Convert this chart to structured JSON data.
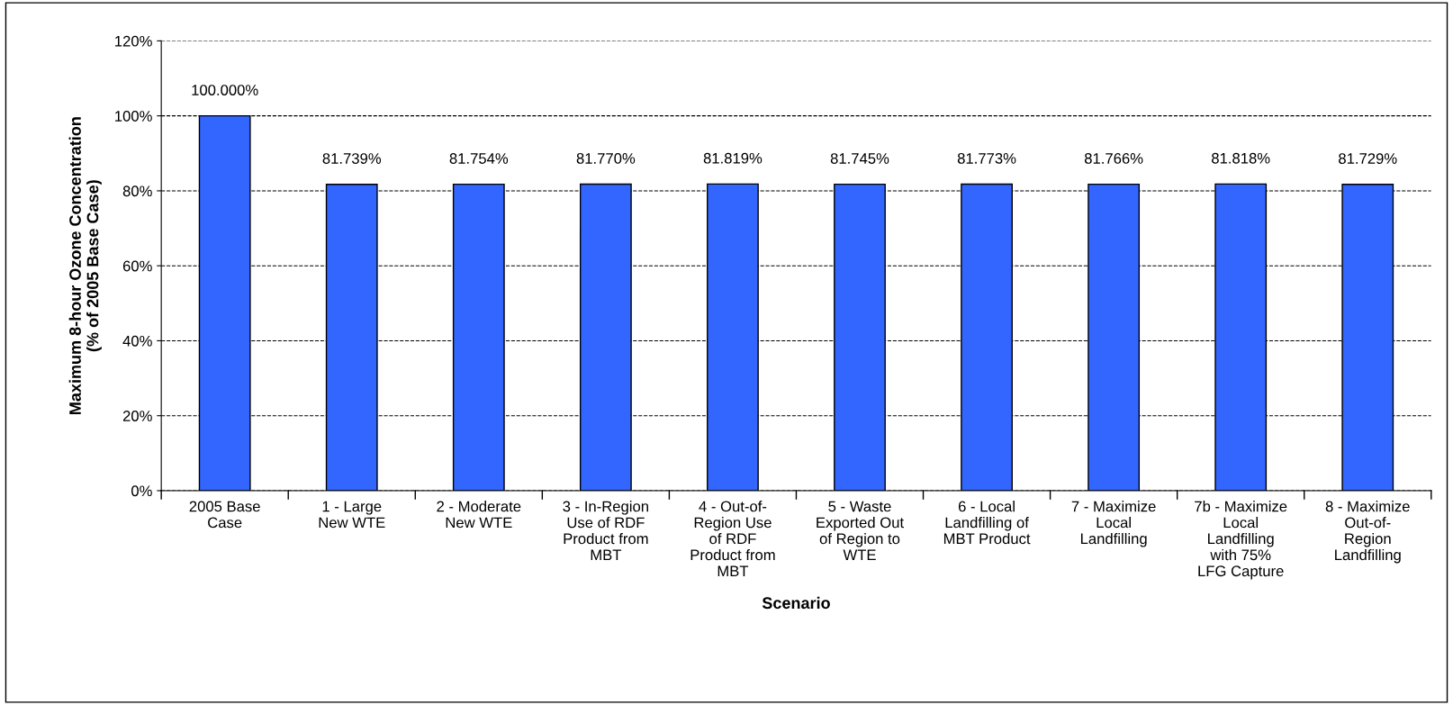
{
  "chart_data": {
    "type": "bar",
    "xlabel": "Scenario",
    "ylabel": "Maximum 8-hour Ozone Concentration\n(% of 2005 Base Case)",
    "categories": [
      "2005 Base\nCase",
      "1 - Large\nNew WTE",
      "2 - Moderate\nNew WTE",
      "3 - In-Region\nUse of RDF\nProduct from\nMBT",
      "4 - Out-of-\nRegion Use\nof RDF\nProduct from\nMBT",
      "5 - Waste\nExported Out\nof Region to\nWTE",
      "6 - Local\nLandfilling of\nMBT Product",
      "7 - Maximize\nLocal\nLandfilling",
      "7b - Maximize\nLocal\nLandfilling\nwith 75%\nLFG Capture",
      "8 - Maximize\nOut-of-\nRegion\nLandfilling"
    ],
    "values": [
      100.0,
      81.739,
      81.754,
      81.77,
      81.819,
      81.745,
      81.773,
      81.766,
      81.818,
      81.729
    ],
    "value_labels": [
      "100.000%",
      "81.739%",
      "81.754%",
      "81.770%",
      "81.819%",
      "81.745%",
      "81.773%",
      "81.766%",
      "81.818%",
      "81.729%"
    ],
    "color": "#3366ff",
    "ylim": [
      0,
      120
    ],
    "yticks": [
      {
        "value": 0,
        "label": "0%"
      },
      {
        "value": 20,
        "label": "20%"
      },
      {
        "value": 40,
        "label": "40%"
      },
      {
        "value": 60,
        "label": "60%"
      },
      {
        "value": 80,
        "label": "80%"
      },
      {
        "value": 100,
        "label": "100%"
      },
      {
        "value": 120,
        "label": "120%"
      }
    ],
    "grid": "y",
    "line_style": "dashed"
  }
}
